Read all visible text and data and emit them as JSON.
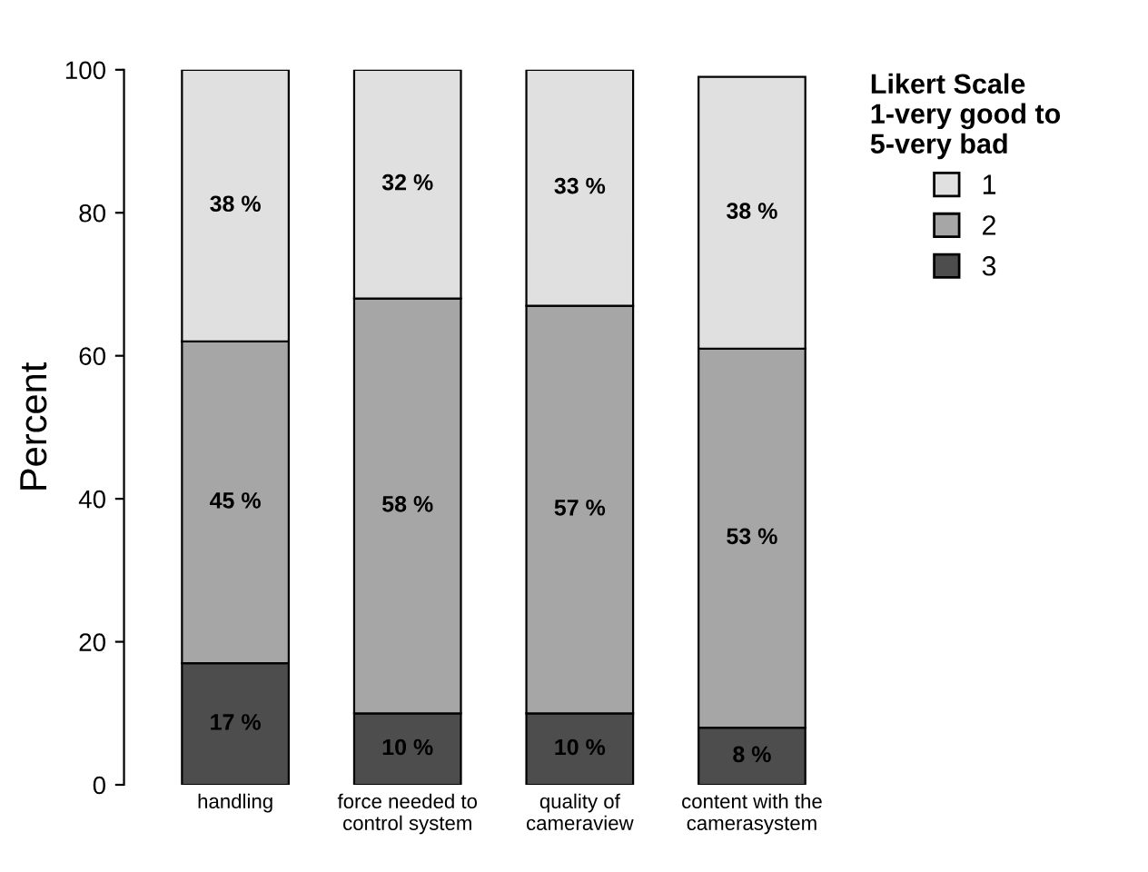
{
  "chart_data": {
    "type": "bar",
    "stacked": true,
    "ylabel": "Percent",
    "legend_title": "Likert Scale\n1-very good to\n5-very bad",
    "legend": "top right",
    "categories": [
      "handling",
      "force needed to\ncontrol system",
      "quality of\ncameraview",
      "content with the\ncamerasystem"
    ],
    "ylim": [
      0,
      100
    ],
    "yticks": [
      0,
      20,
      40,
      60,
      80,
      100
    ],
    "grid": false,
    "series": [
      {
        "name": "3",
        "color": "#4d4d4d",
        "values": [
          17,
          10,
          10,
          8
        ],
        "value_labels": [
          "17 %",
          "10 %",
          "10 %",
          "8 %"
        ]
      },
      {
        "name": "2",
        "color": "#a6a6a6",
        "values": [
          45,
          58,
          57,
          53
        ],
        "value_labels": [
          "45 %",
          "58 %",
          "57 %",
          "53 %"
        ]
      },
      {
        "name": "1",
        "color": "#e0e0e0",
        "values": [
          38,
          32,
          33,
          38
        ],
        "value_labels": [
          "38 %",
          "32 %",
          "33 %",
          "38 %"
        ]
      }
    ]
  }
}
